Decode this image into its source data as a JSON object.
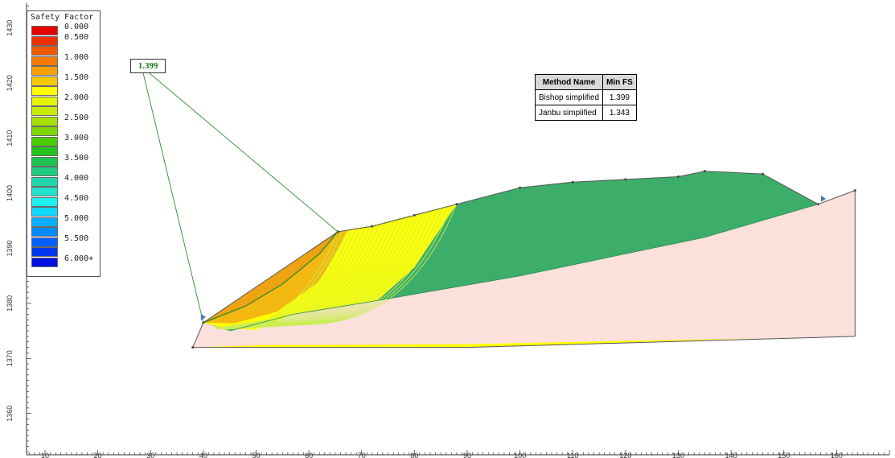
{
  "legend": {
    "title": "Safety Factor",
    "items": [
      {
        "label": "0.000",
        "color": "#e60000"
      },
      {
        "label": "0.500",
        "color": "#f03000"
      },
      {
        "label": "",
        "color": "#f25a00"
      },
      {
        "label": "1.000",
        "color": "#f57a00"
      },
      {
        "label": "",
        "color": "#f9a000"
      },
      {
        "label": "1.500",
        "color": "#f8c800"
      },
      {
        "label": "",
        "color": "#ffff00"
      },
      {
        "label": "2.000",
        "color": "#e4f400"
      },
      {
        "label": "",
        "color": "#c8ec00"
      },
      {
        "label": "2.500",
        "color": "#a6e000"
      },
      {
        "label": "",
        "color": "#7ed800"
      },
      {
        "label": "3.000",
        "color": "#4ccd00"
      },
      {
        "label": "",
        "color": "#22c31a"
      },
      {
        "label": "3.500",
        "color": "#1ec452"
      },
      {
        "label": "",
        "color": "#1ecc80"
      },
      {
        "label": "4.000",
        "color": "#20d6aa"
      },
      {
        "label": "",
        "color": "#22e0cc"
      },
      {
        "label": "4.500",
        "color": "#1ff0f0"
      },
      {
        "label": "",
        "color": "#10d8ff"
      },
      {
        "label": "5.000",
        "color": "#00b0ff"
      },
      {
        "label": "",
        "color": "#0088ff"
      },
      {
        "label": "5.500",
        "color": "#0060ff"
      },
      {
        "label": "",
        "color": "#0036f0"
      },
      {
        "label": "6.000+",
        "color": "#0010e0"
      }
    ]
  },
  "critical_fs": "1.399",
  "method_table": {
    "headers": [
      "Method Name",
      "Min FS"
    ],
    "rows": [
      [
        "Bishop simplified",
        "1.399"
      ],
      [
        "Janbu simplified",
        "1.343"
      ]
    ]
  },
  "colors": {
    "upper_layer": "#3dae6a",
    "lower_layer": "#fbe0dc",
    "critical_zone_orange": "#f3b812",
    "critical_zone_dark_orange": "#eea310",
    "slip_zone_yellow": "#ffff00",
    "boundary": "#555555",
    "slip_line": "#2f8a2f",
    "slip_circles": "#c8ee50"
  },
  "chart_data": {
    "type": "table",
    "x_ticks": [
      10,
      20,
      30,
      40,
      50,
      60,
      70,
      80,
      90,
      100,
      110,
      120,
      130,
      140,
      150,
      160
    ],
    "y_ticks": [
      1360,
      1370,
      1380,
      1390,
      1400,
      1410,
      1420,
      1430
    ],
    "xlim": [
      6.5,
      170
    ],
    "ylim": [
      1352.5,
      1434.5
    ],
    "ground_surface": [
      [
        38,
        1372
      ],
      [
        40,
        1376.5
      ],
      [
        65.5,
        1393
      ],
      [
        72,
        1394
      ],
      [
        80,
        1396
      ],
      [
        88,
        1398
      ],
      [
        100,
        1401
      ],
      [
        110,
        1402
      ],
      [
        120,
        1402.5
      ],
      [
        130,
        1403
      ],
      [
        135,
        1404
      ],
      [
        146,
        1403.5
      ],
      [
        156.5,
        1398
      ],
      [
        163.5,
        1400.5
      ]
    ],
    "layer_boundary": [
      [
        45,
        1375
      ],
      [
        57,
        1378
      ],
      [
        73,
        1380.5
      ],
      [
        100,
        1385
      ],
      [
        135,
        1392
      ],
      [
        156.5,
        1398
      ]
    ],
    "model_base": [
      [
        38,
        1372
      ],
      [
        90,
        1372
      ],
      [
        163.5,
        1374
      ]
    ],
    "critical_slip_surface": [
      [
        40,
        1376.5
      ],
      [
        48,
        1379.5
      ],
      [
        55,
        1383.5
      ],
      [
        62,
        1389
      ],
      [
        65.5,
        1393
      ]
    ],
    "fs_label_anchor": [
      28,
      1423
    ],
    "slip_entry_marker": [
      40,
      1377.5
    ],
    "slip_exit_marker": [
      157.5,
      1399
    ]
  }
}
